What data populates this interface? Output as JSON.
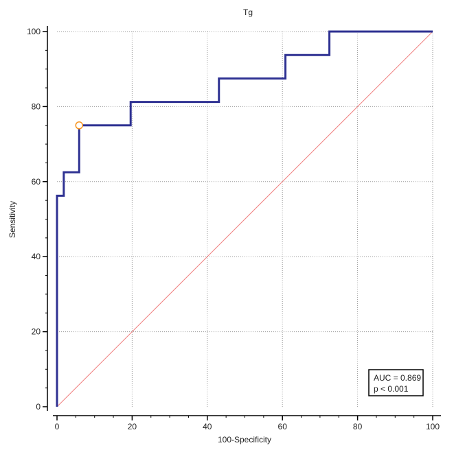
{
  "chart_data": {
    "type": "line",
    "title": "Tg",
    "xlabel": "100-Specificity",
    "ylabel": "Sensitivity",
    "xlim": [
      0,
      100
    ],
    "ylim": [
      0,
      100
    ],
    "x_ticks": [
      0,
      20,
      40,
      60,
      80,
      100
    ],
    "y_ticks": [
      0,
      20,
      40,
      60,
      80,
      100
    ],
    "grid": true,
    "series": [
      {
        "name": "ROC curve",
        "color": "#2e3192",
        "points": [
          [
            0,
            0
          ],
          [
            0,
            56.25
          ],
          [
            1.8,
            56.25
          ],
          [
            1.8,
            62.5
          ],
          [
            5.9,
            62.5
          ],
          [
            5.9,
            75
          ],
          [
            19.6,
            75
          ],
          [
            19.6,
            81.25
          ],
          [
            43.1,
            81.25
          ],
          [
            43.1,
            87.5
          ],
          [
            60.8,
            87.5
          ],
          [
            60.8,
            93.75
          ],
          [
            72.5,
            93.75
          ],
          [
            72.5,
            100
          ],
          [
            100,
            100
          ]
        ]
      },
      {
        "name": "Reference line",
        "color": "#f08080",
        "points": [
          [
            0,
            0
          ],
          [
            100,
            100
          ]
        ]
      }
    ],
    "optimal_point": {
      "x": 5.9,
      "y": 75,
      "color": "#f7941d"
    },
    "legend_position": "bottom-right",
    "annotation": {
      "line1": "AUC = 0.869",
      "line2": "p < 0.001"
    }
  }
}
